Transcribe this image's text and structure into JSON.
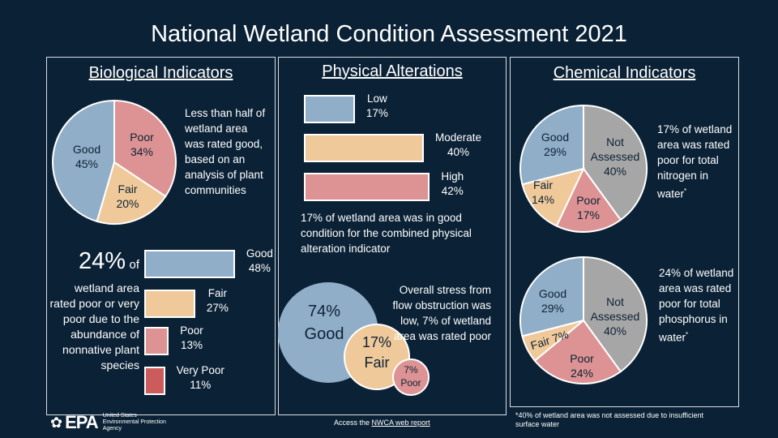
{
  "title": "National Wetland Condition Assessment 2021",
  "colors": {
    "background": "#0b2236",
    "good": "#91aec9",
    "fair": "#f0c99a",
    "poor": "#dd9393",
    "very_poor": "#cc5c5c",
    "not_assessed": "#a6a6a6"
  },
  "biological": {
    "heading": "Biological Indicators",
    "pie_text": "Less than half of wetland area was rated good, based on an analysis of plant communities",
    "big_pct": "24%",
    "big_of": "of",
    "bar_text": "wetland area rated poor or very poor due to the abundance of nonnative plant species"
  },
  "physical": {
    "heading": "Physical Alterations",
    "bar_text": "17% of wetland area was in good condition for the combined physical alteration indicator",
    "bubble_text": "Overall stress from flow obstruction was low, 7% of wetland area was rated poor"
  },
  "chemical": {
    "heading": "Chemical Indicators",
    "nitrogen_text": "17% of wetland area was rated poor for total nitrogen in water",
    "phosphorus_text": "24% of wetland area was rated poor for total phosphorus in water",
    "asterisk": "*"
  },
  "footer": {
    "agency_line1": "United States",
    "agency_line2": "Environmental Protection",
    "agency_line3": "Agency",
    "logo": "EPA",
    "access_prefix": "Access the",
    "access_link": "NWCA web report",
    "note": "*40% of wetland area was not assessed due to insufficient surface water"
  },
  "chart_data": [
    {
      "type": "pie",
      "id": "bio-pie",
      "title": "Biological Indicators",
      "slices": [
        {
          "label": "Poor",
          "value": 34,
          "text": "34%"
        },
        {
          "label": "Fair",
          "value": 20,
          "text": "20%"
        },
        {
          "label": "Good",
          "value": 45,
          "text": "45%"
        }
      ]
    },
    {
      "type": "bar",
      "id": "bio-bars",
      "title": "Nonnative plant species",
      "categories": [
        {
          "label": "Good",
          "value": 48,
          "text": "48%"
        },
        {
          "label": "Fair",
          "value": 27,
          "text": "27%"
        },
        {
          "label": "Poor",
          "value": 13,
          "text": "13%"
        },
        {
          "label": "Very Poor",
          "value": 11,
          "text": "11%"
        }
      ]
    },
    {
      "type": "bar",
      "id": "phys-bars",
      "title": "Physical Alterations",
      "categories": [
        {
          "label": "Low",
          "value": 17,
          "text": "17%"
        },
        {
          "label": "Moderate",
          "value": 40,
          "text": "40%"
        },
        {
          "label": "High",
          "value": 42,
          "text": "42%"
        }
      ]
    },
    {
      "type": "bubble",
      "id": "flow-bubbles",
      "title": "Flow obstruction",
      "categories": [
        {
          "label": "Good",
          "value": 74,
          "text": "74%"
        },
        {
          "label": "Fair",
          "value": 17,
          "text": "17%"
        },
        {
          "label": "Poor",
          "value": 7,
          "text": "7%"
        }
      ]
    },
    {
      "type": "pie",
      "id": "nitrogen-pie",
      "title": "Total nitrogen",
      "slices": [
        {
          "label": "Not Assessed",
          "value": 40,
          "text": "40%"
        },
        {
          "label": "Poor",
          "value": 17,
          "text": "17%"
        },
        {
          "label": "Fair",
          "value": 14,
          "text": "14%"
        },
        {
          "label": "Good",
          "value": 29,
          "text": "29%"
        }
      ]
    },
    {
      "type": "pie",
      "id": "phosphorus-pie",
      "title": "Total phosphorus",
      "slices": [
        {
          "label": "Not Assessed",
          "value": 40,
          "text": "40%"
        },
        {
          "label": "Poor",
          "value": 24,
          "text": "24%"
        },
        {
          "label": "Fair",
          "value": 7,
          "text": "7%"
        },
        {
          "label": "Good",
          "value": 29,
          "text": "29%"
        }
      ]
    }
  ]
}
